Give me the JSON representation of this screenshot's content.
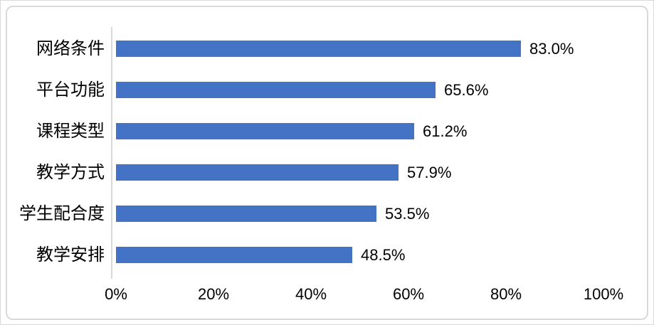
{
  "chart_data": {
    "type": "bar",
    "orientation": "horizontal",
    "title": "",
    "categories": [
      "网络条件",
      "平台功能",
      "课程类型",
      "教学方式",
      "学生配合度",
      "教学安排"
    ],
    "values": [
      83.0,
      65.6,
      61.2,
      57.9,
      53.5,
      48.5
    ],
    "data_labels": [
      "83.0%",
      "65.6%",
      "61.2%",
      "57.9%",
      "53.5%",
      "48.5%"
    ],
    "x_tick_labels": [
      "0%",
      "20%",
      "40%",
      "60%",
      "80%",
      "100%"
    ],
    "x_tick_values": [
      0,
      20,
      40,
      60,
      80,
      100
    ],
    "xlim": [
      0,
      100
    ],
    "grid": false,
    "legend_position": "none",
    "bar_color": "#4472C4",
    "axis_line_color": "#D9D9D9",
    "text_color": "#000000"
  }
}
